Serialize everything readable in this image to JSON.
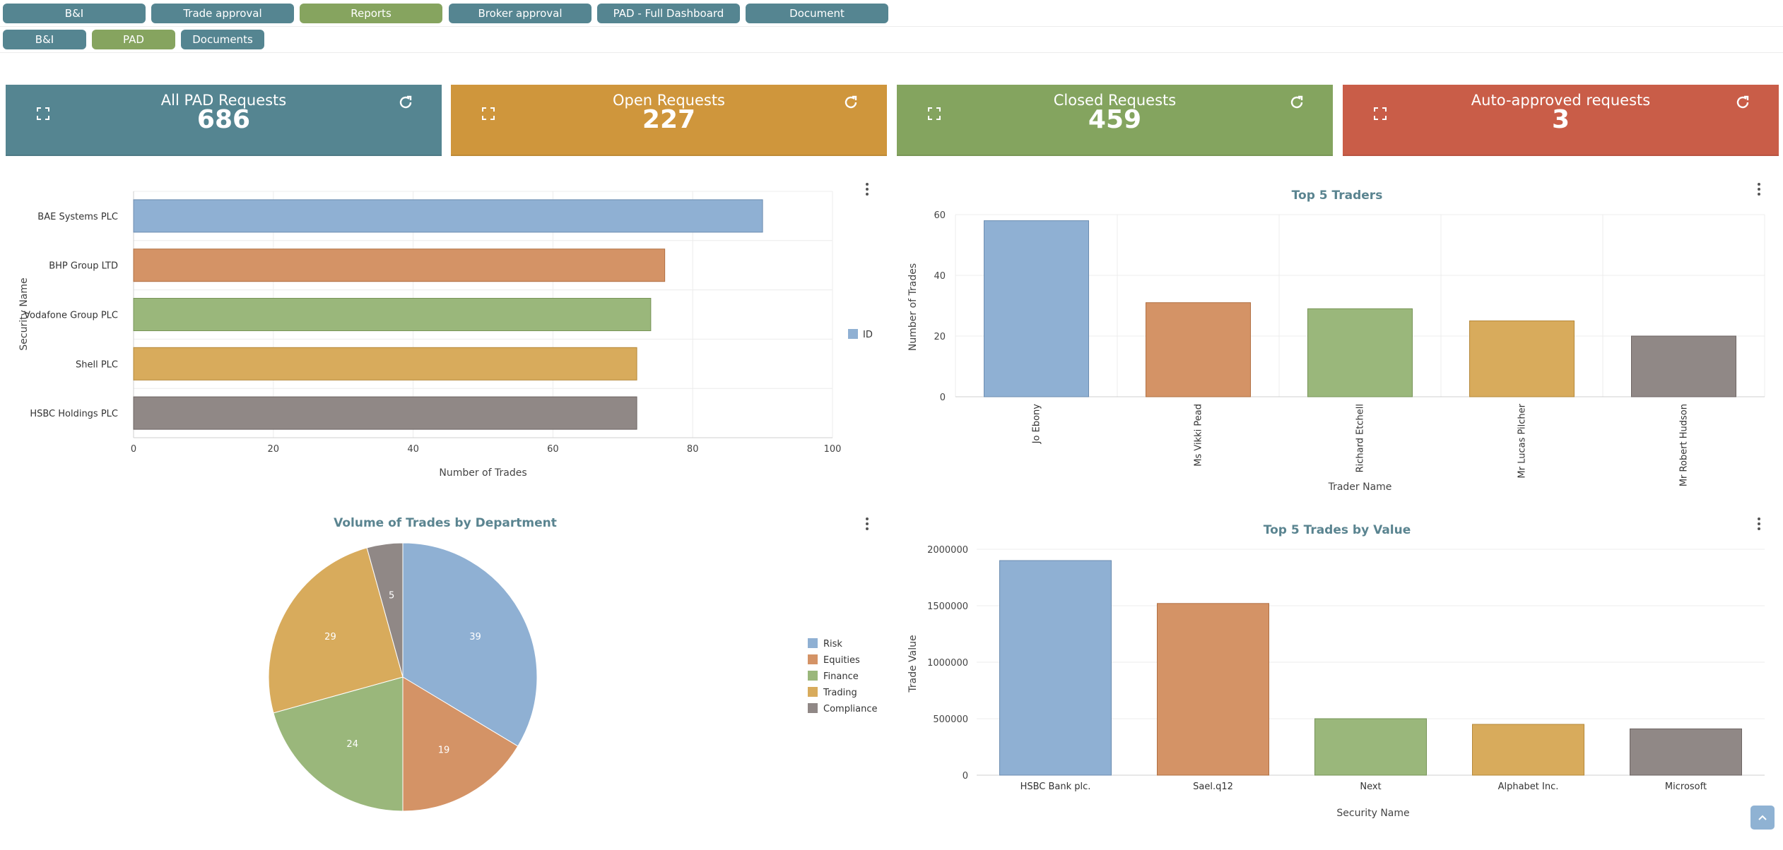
{
  "nav_row1": [
    {
      "label": "B&I",
      "active": false
    },
    {
      "label": "Trade approval",
      "active": false
    },
    {
      "label": "Reports",
      "active": true
    },
    {
      "label": "Broker approval",
      "active": false
    },
    {
      "label": "PAD - Full Dashboard",
      "active": false
    },
    {
      "label": "Document",
      "active": false
    }
  ],
  "nav_row2": [
    {
      "label": "B&I",
      "active": false
    },
    {
      "label": "PAD",
      "active": true
    },
    {
      "label": "Documents",
      "active": false
    }
  ],
  "cards": [
    {
      "title": "All PAD Requests",
      "value": "686",
      "color": "#558591"
    },
    {
      "title": "Open Requests",
      "value": "227",
      "color": "#cf963c"
    },
    {
      "title": "Closed Requests",
      "value": "459",
      "color": "#84a45f"
    },
    {
      "title": "Auto-approved requests",
      "value": "3",
      "color": "#c95d48"
    }
  ],
  "colors": {
    "blue": "#8fb0d3",
    "orange": "#d49366",
    "green": "#9ab77b",
    "gold": "#d8ab5c",
    "gray": "#908886",
    "chart_title": "#5a8490"
  },
  "chart_data": [
    {
      "type": "bar",
      "orientation": "horizontal",
      "title": "",
      "categories": [
        "BAE Systems PLC",
        "BHP Group LTD",
        "Vodafone Group PLC",
        "Shell PLC",
        "HSBC Holdings PLC"
      ],
      "series": [
        {
          "name": "ID",
          "values": [
            90,
            76,
            74,
            72,
            72
          ]
        }
      ],
      "xlabel": "Number of Trades",
      "ylabel": "Security Name",
      "xlim": [
        0,
        100
      ],
      "xticks": [
        "0",
        "20",
        "40",
        "60",
        "80",
        "100"
      ],
      "grid": true,
      "legend": "right"
    },
    {
      "type": "bar",
      "title": "Top 5 Traders",
      "categories": [
        "Jo Ebony",
        "Ms Vikki Pead",
        "Richard Etchell",
        "Mr Lucas Pilcher",
        "Mr Robert Hudson"
      ],
      "values": [
        58,
        31,
        29,
        25,
        20
      ],
      "xlabel": "Trader Name",
      "ylabel": "Number of Trades",
      "ylim": [
        0,
        60
      ],
      "yticks": [
        "0",
        "20",
        "40",
        "60"
      ],
      "grid": true
    },
    {
      "type": "pie",
      "title": "Volume of Trades by Department",
      "labels": [
        "Risk",
        "Equities",
        "Finance",
        "Trading",
        "Compliance"
      ],
      "values": [
        39,
        19,
        24,
        29,
        5
      ],
      "value_labels": [
        "39",
        "19",
        "24",
        "29",
        "5"
      ],
      "legend": "right"
    },
    {
      "type": "bar",
      "title": "Top 5 Trades by Value",
      "categories": [
        "HSBC Bank plc.",
        "Sael.q12",
        "Next",
        "Alphabet Inc.",
        "Microsoft"
      ],
      "values": [
        1900000,
        1520000,
        500000,
        450000,
        410000
      ],
      "xlabel": "Security Name",
      "ylabel": "Trade Value",
      "ylim": [
        0,
        2000000
      ],
      "yticks": [
        "0",
        "500000",
        "1000000",
        "1500000",
        "2000000"
      ],
      "grid": true
    }
  ]
}
